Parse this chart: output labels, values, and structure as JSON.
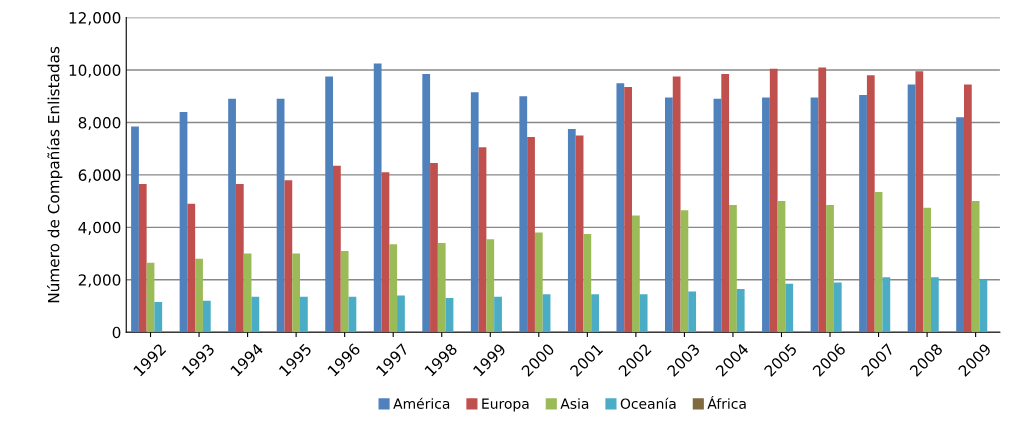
{
  "chart_data": {
    "type": "bar",
    "ylabel": "Número de Compañías Enlistadas",
    "categories": [
      "1992",
      "1993",
      "1994",
      "1995",
      "1996",
      "1997",
      "1998",
      "1999",
      "2000",
      "2001",
      "2002",
      "2003",
      "2004",
      "2005",
      "2006",
      "2007",
      "2008",
      "2009"
    ],
    "series": [
      {
        "name": "América",
        "color": "#4f81bd",
        "values": [
          7850,
          8400,
          8900,
          8900,
          9750,
          10250,
          9850,
          9150,
          9000,
          7750,
          9500,
          8950,
          8900,
          8950,
          8950,
          9050,
          9450,
          8200
        ]
      },
      {
        "name": "Europa",
        "color": "#c0504d",
        "values": [
          5650,
          4900,
          5650,
          5800,
          6350,
          6100,
          6450,
          7050,
          7450,
          7500,
          9350,
          9750,
          9850,
          10050,
          10100,
          9800,
          9950,
          9450
        ]
      },
      {
        "name": "Asia",
        "color": "#9bbb59",
        "values": [
          2650,
          2800,
          3000,
          3000,
          3100,
          3350,
          3400,
          3550,
          3800,
          3750,
          4450,
          4650,
          4850,
          5000,
          4850,
          5350,
          4750,
          5000
        ]
      },
      {
        "name": "Oceanía",
        "color": "#4bacc6",
        "values": [
          1150,
          1200,
          1350,
          1350,
          1350,
          1400,
          1300,
          1350,
          1450,
          1450,
          1450,
          1550,
          1650,
          1850,
          1900,
          2100,
          2100,
          2000
        ]
      },
      {
        "name": "África",
        "color": "#7f6b3f",
        "values": [
          null,
          null,
          null,
          null,
          null,
          null,
          null,
          null,
          null,
          null,
          null,
          null,
          null,
          null,
          null,
          null,
          null,
          null
        ]
      }
    ],
    "ylim": [
      0,
      12000
    ],
    "yticks": [
      {
        "value": 0,
        "label": "0"
      },
      {
        "value": 2000,
        "label": "2,000"
      },
      {
        "value": 4000,
        "label": "4,000"
      },
      {
        "value": 6000,
        "label": "6,000"
      },
      {
        "value": 8000,
        "label": "8,000"
      },
      {
        "value": 10000,
        "label": "10,000"
      },
      {
        "value": 12000,
        "label": "12,000"
      }
    ],
    "grid": "y",
    "legend": "bottom"
  }
}
